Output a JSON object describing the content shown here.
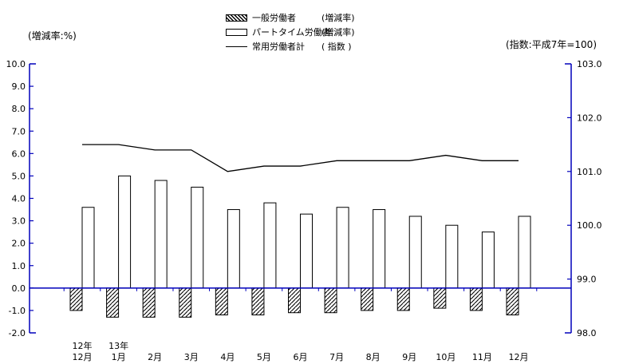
{
  "colors": {
    "axis": "#0000bb",
    "series_stroke": "#000000",
    "background": "#ffffff"
  },
  "axes": {
    "left_unit_label": "(増減率:%)",
    "right_unit_label": "(指数:平成7年=100)"
  },
  "legend": {
    "items": [
      {
        "swatch": "hatched-bar",
        "label": "一般労働者",
        "qualifier": "(増減率)"
      },
      {
        "swatch": "white-bar",
        "label": "パートタイム労働者",
        "qualifier": "(増減率)"
      },
      {
        "swatch": "line",
        "label": "常用労働者計",
        "qualifier": "( 指数 )"
      }
    ]
  },
  "chart_data": {
    "type": "combo-bar-line",
    "categories": [
      "12月",
      "1月",
      "2月",
      "3月",
      "4月",
      "5月",
      "6月",
      "7月",
      "8月",
      "9月",
      "10月",
      "11月",
      "12月"
    ],
    "category_years": [
      "12年",
      "13年",
      "",
      "",
      "",
      "",
      "",
      "",
      "",
      "",
      "",
      "",
      ""
    ],
    "series": [
      {
        "name": "一般労働者(増減率)",
        "type": "bar",
        "style": "hatched",
        "axis": "left",
        "values": [
          -1.0,
          -1.3,
          -1.3,
          -1.3,
          -1.2,
          -1.2,
          -1.1,
          -1.1,
          -1.0,
          -1.0,
          -0.9,
          -1.0,
          -1.2
        ]
      },
      {
        "name": "パートタイム労働者(増減率)",
        "type": "bar",
        "style": "white",
        "axis": "left",
        "values": [
          3.6,
          5.0,
          4.8,
          4.5,
          3.5,
          3.8,
          3.3,
          3.6,
          3.5,
          3.2,
          2.8,
          2.5,
          3.2
        ]
      },
      {
        "name": "常用労働者計(指数)",
        "type": "line",
        "axis": "right",
        "values": [
          101.5,
          101.5,
          101.4,
          101.4,
          101.0,
          101.1,
          101.1,
          101.2,
          101.2,
          101.2,
          101.3,
          101.2,
          101.2
        ]
      }
    ],
    "left_axis": {
      "label": "(増減率:%)",
      "min": -2,
      "max": 10,
      "step": 1
    },
    "right_axis": {
      "label": "(指数:平成7年=100)",
      "min": 98,
      "max": 103,
      "step": 1
    },
    "axis_color": "#0000bb",
    "grid": "off",
    "legend_position": "top-center"
  }
}
